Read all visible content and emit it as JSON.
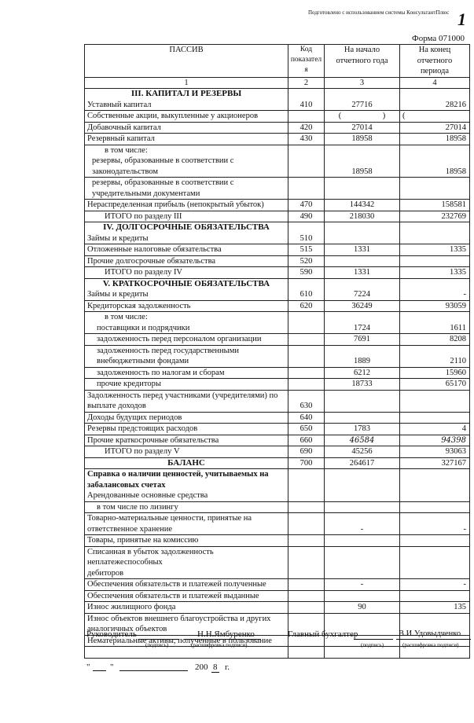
{
  "header": {
    "note": "Подготовлено с использованием системы КонсультантПлюс",
    "page_mark": "1",
    "form": "Форма 071000"
  },
  "table": {
    "columns": [
      "ПАССИВ",
      "Код показателя",
      "На начало отчетного года",
      "На конец отчетного периода"
    ],
    "column_numbers": [
      "1",
      "2",
      "3",
      "4"
    ],
    "rows": [
      {
        "lines": [
          {
            "t": "III. КАПИТАЛ И РЕЗЕРВЫ",
            "s": "h"
          },
          {
            "t": "Уставный капитал"
          }
        ],
        "code": "410",
        "v1": "27716",
        "v2": "28216"
      },
      {
        "lines": [
          {
            "t": "Собственные акции, выкупленные у акционеров"
          }
        ],
        "code": "",
        "v1": "(                    )",
        "v2": "(",
        "paren": true
      },
      {
        "lines": [
          {
            "t": "Добавочный капитал"
          }
        ],
        "code": "420",
        "v1": "27014",
        "v2": "27014"
      },
      {
        "lines": [
          {
            "t": "Резервный капитал"
          }
        ],
        "code": "430",
        "v1": "18958",
        "v2": "18958"
      },
      {
        "lines": [
          {
            "t": "в том числе:",
            "s": "i3"
          },
          {
            "t": "резервы, образованные в соответствии с",
            "s": "i2"
          },
          {
            "t": "законодательством",
            "s": "i2"
          }
        ],
        "code": "",
        "v1": "18958",
        "v2": "18958"
      },
      {
        "lines": [
          {
            "t": "резервы, образованные в соответствии с",
            "s": "i2"
          },
          {
            "t": "учредительными документами",
            "s": "i2"
          }
        ],
        "code": "",
        "v1": "",
        "v2": ""
      },
      {
        "lines": [
          {
            "t": "Нераспределенная прибыль (непокрытый убыток)"
          }
        ],
        "code": "470",
        "v1": "144342",
        "v2": "158581"
      },
      {
        "lines": [
          {
            "t": "ИТОГО по разделу III",
            "s": "i3"
          }
        ],
        "code": "490",
        "v1": "218030",
        "v2": "232769"
      },
      {
        "lines": [
          {
            "t": "IV. ДОЛГОСРОЧНЫЕ ОБЯЗАТЕЛЬСТВА",
            "s": "h"
          },
          {
            "t": "Займы и кредиты"
          }
        ],
        "code": "510",
        "v1": "",
        "v2": ""
      },
      {
        "lines": [
          {
            "t": "Отложенные налоговые обязательства"
          }
        ],
        "code": "515",
        "v1": "1331",
        "v2": "1335"
      },
      {
        "lines": [
          {
            "t": "Прочие долгосрочные обязательства"
          }
        ],
        "code": "520",
        "v1": "",
        "v2": ""
      },
      {
        "lines": [
          {
            "t": "ИТОГО по разделу IV",
            "s": "i3"
          }
        ],
        "code": "590",
        "v1": "1331",
        "v2": "1335"
      },
      {
        "lines": [
          {
            "t": "V. КРАТКОСРОЧНЫЕ ОБЯЗАТЕЛЬСТВА",
            "s": "h"
          },
          {
            "t": "Займы и кредиты"
          }
        ],
        "code": "610",
        "v1": "7224",
        "v2": "-"
      },
      {
        "lines": [
          {
            "t": "Кредиторская задолженность"
          }
        ],
        "code": "620",
        "v1": "36249",
        "v2": "93059"
      },
      {
        "lines": [
          {
            "t": "в том числе:",
            "s": "i3"
          },
          {
            "t": "поставщики и подрядчики",
            "s": "i1"
          }
        ],
        "code": "",
        "v1": "1724",
        "v2": "1611"
      },
      {
        "lines": [
          {
            "t": "задолженность перед персоналом организации",
            "s": "i1"
          }
        ],
        "code": "",
        "v1": "7691",
        "v2": "8208"
      },
      {
        "lines": [
          {
            "t": "задолженность перед государственными",
            "s": "i1"
          },
          {
            "t": "внебюджетными фондами",
            "s": "i1"
          }
        ],
        "code": "",
        "v1": "1889",
        "v2": "2110"
      },
      {
        "lines": [
          {
            "t": "задолженность по налогам и сборам",
            "s": "i1"
          }
        ],
        "code": "",
        "v1": "6212",
        "v2": "15960"
      },
      {
        "lines": [
          {
            "t": "прочие кредиторы",
            "s": "i1"
          }
        ],
        "code": "",
        "v1": "18733",
        "v2": "65170"
      },
      {
        "lines": [
          {
            "t": "Задолженность перед участниками (учредителями) по"
          },
          {
            "t": "выплате доходов"
          }
        ],
        "code": "630",
        "v1": "",
        "v2": ""
      },
      {
        "lines": [
          {
            "t": "Доходы будущих периодов"
          }
        ],
        "code": "640",
        "v1": "",
        "v2": ""
      },
      {
        "lines": [
          {
            "t": "Резервы предстоящих расходов"
          }
        ],
        "code": "650",
        "v1": "1783",
        "v2": "4"
      },
      {
        "lines": [
          {
            "t": "Прочие краткосрочные обязательства"
          }
        ],
        "code": "660",
        "v1": "46584",
        "v2": "94398",
        "hand": true
      },
      {
        "lines": [
          {
            "t": "ИТОГО по разделу V",
            "s": "i3"
          }
        ],
        "code": "690",
        "v1": "45256",
        "v2": "93063"
      },
      {
        "lines": [
          {
            "t": "БАЛАНС",
            "s": "h"
          }
        ],
        "code": "700",
        "v1": "264617",
        "v2": "327167"
      },
      {
        "lines": [
          {
            "t": "Справка о наличии ценностей, учитываемых на",
            "s": "b"
          },
          {
            "t": "забалансовых счетах",
            "s": "b"
          },
          {
            "t": "Арендованные основные средства"
          }
        ],
        "code": "",
        "v1": "",
        "v2": ""
      },
      {
        "lines": [
          {
            "t": "в том числе по лизингу",
            "s": "i1"
          }
        ],
        "code": "",
        "v1": "",
        "v2": ""
      },
      {
        "lines": [
          {
            "t": "Товарно-материальные ценности, принятые на"
          },
          {
            "t": "ответственное хранение"
          }
        ],
        "code": "",
        "v1": "-",
        "v2": "-"
      },
      {
        "lines": [
          {
            "t": "Товары, принятые на комиссию"
          }
        ],
        "code": "",
        "v1": "",
        "v2": ""
      },
      {
        "lines": [
          {
            "t": "Списанная в убыток задолженность неплатежеспособных"
          },
          {
            "t": "дебиторов"
          }
        ],
        "code": "",
        "v1": "",
        "v2": ""
      },
      {
        "lines": [
          {
            "t": "Обеспечения обязательств и платежей полученные"
          }
        ],
        "code": "",
        "v1": "-",
        "v2": "-"
      },
      {
        "lines": [
          {
            "t": "Обеспечения обязательств и платежей выданные"
          }
        ],
        "code": "",
        "v1": "",
        "v2": ""
      },
      {
        "lines": [
          {
            "t": "Износ жилищного фонда"
          }
        ],
        "code": "",
        "v1": "90",
        "v2": "135"
      },
      {
        "lines": [
          {
            "t": "Износ объектов внешнего благоустройства и других"
          },
          {
            "t": "аналогичных объектов"
          }
        ],
        "code": "",
        "v1": "",
        "v2": ""
      },
      {
        "lines": [
          {
            "t": "Нематериальные активы, полученные в пользование"
          }
        ],
        "code": "",
        "v1": "",
        "v2": ""
      },
      {
        "lines": [
          {
            "t": ""
          }
        ],
        "code": "",
        "v1": "",
        "v2": ""
      }
    ]
  },
  "signatures": {
    "head_label": "Руководитель",
    "head_name": "Н.Н.Ямбуренко",
    "accountant_label": "Главный бухгалтер",
    "accountant_name": "В.И.Удовыдченко",
    "signature_caption": "(подпись)",
    "decode_caption": "(расшифровка подписи)",
    "date_quote_open": "\"",
    "date_quote_close": "\"",
    "year_prefix": "200",
    "year_digit": "8",
    "year_suffix": "г."
  }
}
